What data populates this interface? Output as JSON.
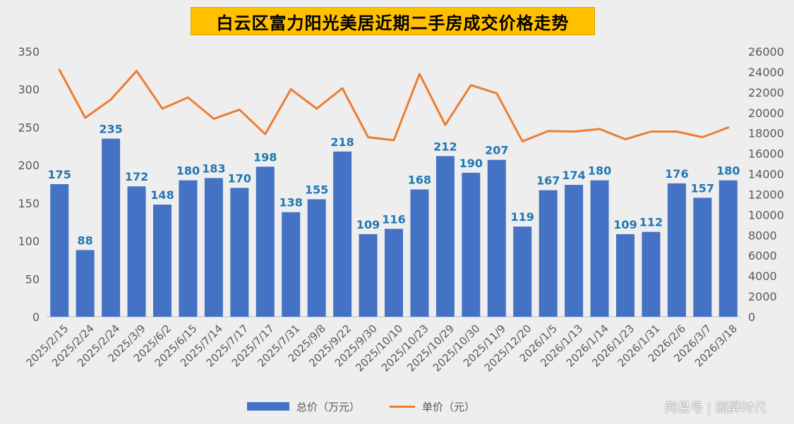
{
  "chart_data": {
    "type": "bar+line",
    "title": "白云区富力阳光美居近期二手房成交价格走势",
    "categories": [
      "2025/2/15",
      "2025/2/24",
      "2025/2/24",
      "2025/3/9",
      "2025/6/2",
      "2025/6/15",
      "2025/7/14",
      "2025/7/17",
      "2025/7/17",
      "2025/7/31",
      "2025/9/8",
      "2025/9/22",
      "2025/9/30",
      "2025/10/10",
      "2025/10/23",
      "2025/10/29",
      "2025/10/30",
      "2025/11/9",
      "2025/12/20",
      "2026/1/5",
      "2026/1/13",
      "2026/1/14",
      "2026/1/23",
      "2026/1/31",
      "2026/2/6",
      "2026/3/7",
      "2026/3/18"
    ],
    "series": [
      {
        "name": "总价（万元）",
        "type": "bar",
        "axis": "left",
        "color": "#4472c4",
        "values": [
          175,
          88,
          235,
          172,
          148,
          180,
          183,
          170,
          198,
          138,
          155,
          218,
          109,
          116,
          168,
          212,
          190,
          207,
          119,
          167,
          174,
          180,
          109,
          112,
          176,
          157,
          180
        ]
      },
      {
        "name": "单价（元）",
        "type": "line",
        "axis": "right",
        "color": "#ed7d31",
        "values": [
          24200,
          19500,
          21300,
          24100,
          20400,
          21500,
          19400,
          20300,
          17900,
          22300,
          20400,
          22400,
          17600,
          17300,
          23800,
          18800,
          22700,
          21900,
          17200,
          18200,
          18150,
          18400,
          17400,
          18150,
          18150,
          17600,
          18550
        ]
      }
    ],
    "y_left": {
      "min": 0,
      "max": 350,
      "step": 50
    },
    "y_right": {
      "min": 0,
      "max": 26000,
      "step": 2000
    },
    "legend": "bottom-center",
    "grid": false
  },
  "watermark": "网易号 | 刷屏时代"
}
